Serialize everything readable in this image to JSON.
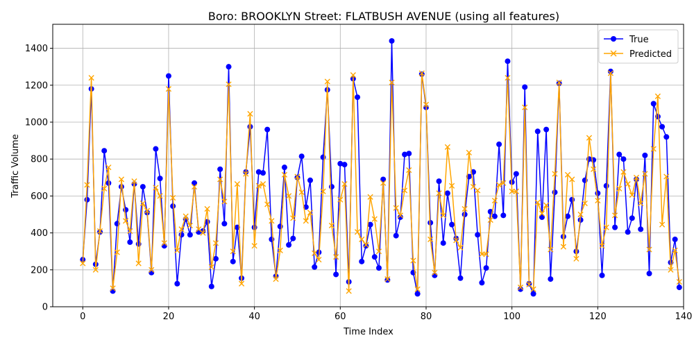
{
  "chart_data": {
    "type": "line",
    "title": "Boro: BROOKLYN Street: FLATBUSH AVENUE (using all features)",
    "xlabel": "Time Index",
    "ylabel": "Traffic Volume",
    "xlim": [
      -7,
      140
    ],
    "ylim": [
      0,
      1530
    ],
    "xticks": [
      0,
      20,
      40,
      60,
      80,
      100,
      120,
      140
    ],
    "yticks": [
      0,
      200,
      400,
      600,
      800,
      1000,
      1200,
      1400
    ],
    "grid": true,
    "legend_position": "top-right",
    "series": [
      {
        "name": "True",
        "color": "#0000ff",
        "marker": "circle",
        "values": [
          255,
          580,
          1180,
          230,
          405,
          845,
          670,
          85,
          450,
          650,
          525,
          350,
          665,
          340,
          650,
          510,
          185,
          855,
          695,
          330,
          1250,
          545,
          125,
          390,
          475,
          390,
          670,
          405,
          410,
          460,
          110,
          260,
          745,
          450,
          1300,
          245,
          430,
          155,
          730,
          975,
          430,
          730,
          725,
          960,
          365,
          165,
          435,
          755,
          335,
          370,
          700,
          815,
          540,
          685,
          215,
          295,
          810,
          1175,
          650,
          175,
          775,
          770,
          135,
          1235,
          1135,
          245,
          330,
          445,
          270,
          210,
          690,
          145,
          1440,
          385,
          485,
          825,
          830,
          185,
          70,
          1260,
          1080,
          455,
          170,
          680,
          345,
          615,
          445,
          370,
          155,
          500,
          705,
          730,
          390,
          130,
          210,
          515,
          490,
          880,
          495,
          1330,
          675,
          720,
          95,
          1190,
          125,
          70,
          950,
          485,
          960,
          150,
          620,
          1210,
          380,
          490,
          580,
          300,
          470,
          685,
          800,
          795,
          615,
          170,
          655,
          1275,
          430,
          825,
          800,
          405,
          480,
          690,
          420,
          820,
          180,
          1100,
          1030,
          975,
          920,
          240,
          365,
          105
        ]
      },
      {
        "name": "Predicted",
        "color": "#ffa500",
        "marker": "x",
        "values": [
          235,
          660,
          1240,
          200,
          410,
          640,
          755,
          100,
          295,
          690,
          465,
          410,
          680,
          235,
          560,
          520,
          200,
          645,
          600,
          345,
          1180,
          590,
          305,
          420,
          490,
          440,
          650,
          420,
          400,
          530,
          215,
          345,
          690,
          570,
          1205,
          300,
          665,
          125,
          720,
          1045,
          330,
          655,
          665,
          555,
          465,
          150,
          305,
          715,
          600,
          480,
          705,
          620,
          465,
          510,
          290,
          255,
          625,
          1220,
          440,
          270,
          580,
          665,
          85,
          1255,
          405,
          365,
          335,
          595,
          475,
          300,
          670,
          150,
          1215,
          535,
          495,
          630,
          740,
          250,
          95,
          1265,
          1095,
          365,
          185,
          615,
          495,
          865,
          655,
          360,
          320,
          530,
          835,
          650,
          630,
          285,
          285,
          470,
          575,
          660,
          670,
          1240,
          625,
          625,
          105,
          1080,
          120,
          95,
          565,
          505,
          550,
          310,
          720,
          1215,
          325,
          715,
          690,
          260,
          500,
          560,
          915,
          745,
          575,
          330,
          430,
          1265,
          495,
          640,
          730,
          665,
          605,
          700,
          560,
          720,
          310,
          855,
          1140,
          445,
          705,
          200,
          305,
          135
        ]
      }
    ]
  }
}
